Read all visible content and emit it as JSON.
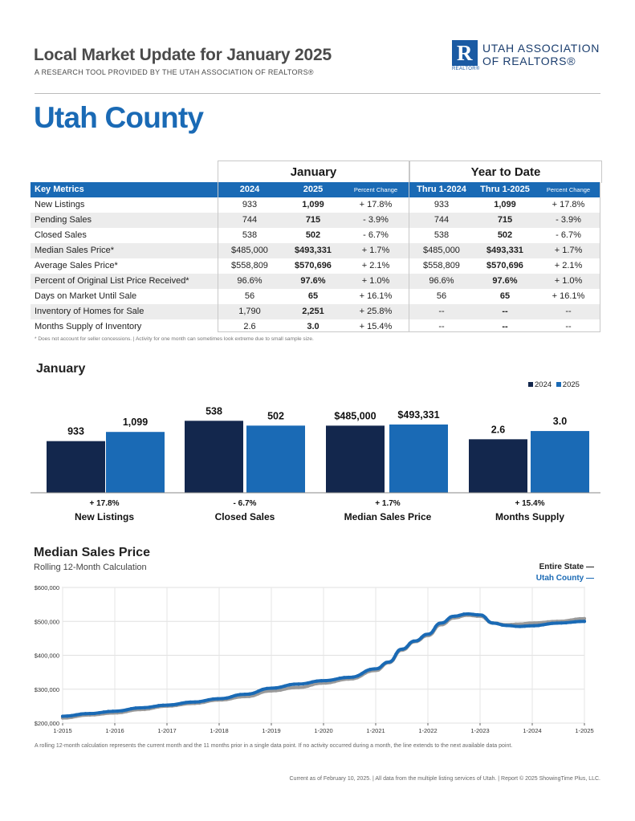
{
  "header": {
    "title": "Local Market Update for January 2025",
    "subtitle": "A RESEARCH TOOL PROVIDED BY THE UTAH ASSOCIATION OF REALTORS®",
    "logo_letter": "R",
    "logo_line1": "UTAH ASSOCIATION",
    "logo_line2": "OF REALTORS®",
    "logo_small": "REALTOR®"
  },
  "area_title": "Utah County",
  "table": {
    "group_january": "January",
    "group_ytd": "Year to Date",
    "columns": [
      "Key Metrics",
      "2024",
      "2025",
      "Percent Change",
      "Thru 1-2024",
      "Thru 1-2025",
      "Percent Change"
    ],
    "rows": [
      [
        "New Listings",
        "933",
        "1,099",
        "+ 17.8%",
        "933",
        "1,099",
        "+ 17.8%"
      ],
      [
        "Pending Sales",
        "744",
        "715",
        "- 3.9%",
        "744",
        "715",
        "- 3.9%"
      ],
      [
        "Closed Sales",
        "538",
        "502",
        "- 6.7%",
        "538",
        "502",
        "- 6.7%"
      ],
      [
        "Median Sales Price*",
        "$485,000",
        "$493,331",
        "+ 1.7%",
        "$485,000",
        "$493,331",
        "+ 1.7%"
      ],
      [
        "Average Sales Price*",
        "$558,809",
        "$570,696",
        "+ 2.1%",
        "$558,809",
        "$570,696",
        "+ 2.1%"
      ],
      [
        "Percent of Original List Price Received*",
        "96.6%",
        "97.6%",
        "+ 1.0%",
        "96.6%",
        "97.6%",
        "+ 1.0%"
      ],
      [
        "Days on Market Until Sale",
        "56",
        "65",
        "+ 16.1%",
        "56",
        "65",
        "+ 16.1%"
      ],
      [
        "Inventory of Homes for Sale",
        "1,790",
        "2,251",
        "+ 25.8%",
        "--",
        "--",
        "--"
      ],
      [
        "Months Supply of Inventory",
        "2.6",
        "3.0",
        "+ 15.4%",
        "--",
        "--",
        "--"
      ]
    ],
    "footnote": "* Does not account for seller concessions.  |  Activity for one month can sometimes look extreme due to small sample size."
  },
  "bar_section": {
    "title": "January",
    "legend": [
      "2024",
      "2025"
    ],
    "colors": {
      "y2024": "#13274d",
      "y2025": "#1a6ab5"
    }
  },
  "chart_data": [
    {
      "type": "bar",
      "title": "January",
      "categories": [
        "New Listings",
        "Closed Sales",
        "Median Sales Price",
        "Months Supply"
      ],
      "series": [
        {
          "name": "2024",
          "values": [
            933,
            538,
            485000,
            2.6
          ],
          "labels": [
            "933",
            "538",
            "$485,000",
            "2.6"
          ]
        },
        {
          "name": "2025",
          "values": [
            1099,
            502,
            493331,
            3.0
          ],
          "labels": [
            "1,099",
            "502",
            "$493,331",
            "3.0"
          ]
        }
      ],
      "percent_change": [
        "+ 17.8%",
        "- 6.7%",
        "+ 1.7%",
        "+ 15.4%"
      ],
      "legend_position": "top-right"
    },
    {
      "type": "line",
      "title": "Median Sales Price",
      "subtitle": "Rolling 12-Month Calculation",
      "x_ticks": [
        "1-2015",
        "1-2016",
        "1-2017",
        "1-2018",
        "1-2019",
        "1-2020",
        "1-2021",
        "1-2022",
        "1-2023",
        "1-2024",
        "1-2025"
      ],
      "y_ticks": [
        "$200,000",
        "$300,000",
        "$400,000",
        "$500,000",
        "$600,000"
      ],
      "ylim": [
        200000,
        600000
      ],
      "grid": true,
      "legend_position": "top-right",
      "series": [
        {
          "name": "Entire State",
          "color": "#9a9a9a",
          "x": [
            "1-2015",
            "7-2015",
            "1-2016",
            "7-2016",
            "1-2017",
            "7-2017",
            "1-2018",
            "7-2018",
            "1-2019",
            "7-2019",
            "1-2020",
            "7-2020",
            "1-2021",
            "4-2021",
            "7-2021",
            "10-2021",
            "1-2022",
            "4-2022",
            "7-2022",
            "10-2022",
            "1-2023",
            "4-2023",
            "7-2023",
            "10-2023",
            "1-2024",
            "7-2024",
            "1-2025"
          ],
          "values": [
            215000,
            224000,
            230000,
            240000,
            250000,
            258000,
            268000,
            278000,
            295000,
            305000,
            318000,
            330000,
            355000,
            378000,
            415000,
            440000,
            458000,
            490000,
            510000,
            518000,
            515000,
            495000,
            490000,
            492000,
            495000,
            500000,
            508000
          ]
        },
        {
          "name": "Utah County",
          "color": "#1a6ab5",
          "x": [
            "1-2015",
            "7-2015",
            "1-2016",
            "7-2016",
            "1-2017",
            "7-2017",
            "1-2018",
            "7-2018",
            "1-2019",
            "7-2019",
            "1-2020",
            "7-2020",
            "1-2021",
            "4-2021",
            "7-2021",
            "10-2021",
            "1-2022",
            "4-2022",
            "7-2022",
            "10-2022",
            "1-2023",
            "4-2023",
            "7-2023",
            "10-2023",
            "1-2024",
            "7-2024",
            "1-2025"
          ],
          "values": [
            220000,
            228000,
            235000,
            245000,
            253000,
            262000,
            272000,
            285000,
            303000,
            315000,
            325000,
            335000,
            360000,
            380000,
            418000,
            442000,
            462000,
            495000,
            515000,
            522000,
            519000,
            495000,
            488000,
            485000,
            487000,
            495000,
            500000
          ]
        }
      ]
    }
  ],
  "line_section": {
    "title": "Median Sales Price",
    "subtitle": "Rolling 12-Month Calculation",
    "legend_state": "Entire State  —",
    "legend_county": "Utah County  —",
    "note": "A rolling 12-month calculation represents the current month and the 11 months prior in a single data point. If no activity occurred during a month, the line extends to the next available data point."
  },
  "footer": "Current as of February 10, 2025.  |  All data from the multiple listing services of Utah.  |  Report © 2025 ShowingTime Plus, LLC."
}
